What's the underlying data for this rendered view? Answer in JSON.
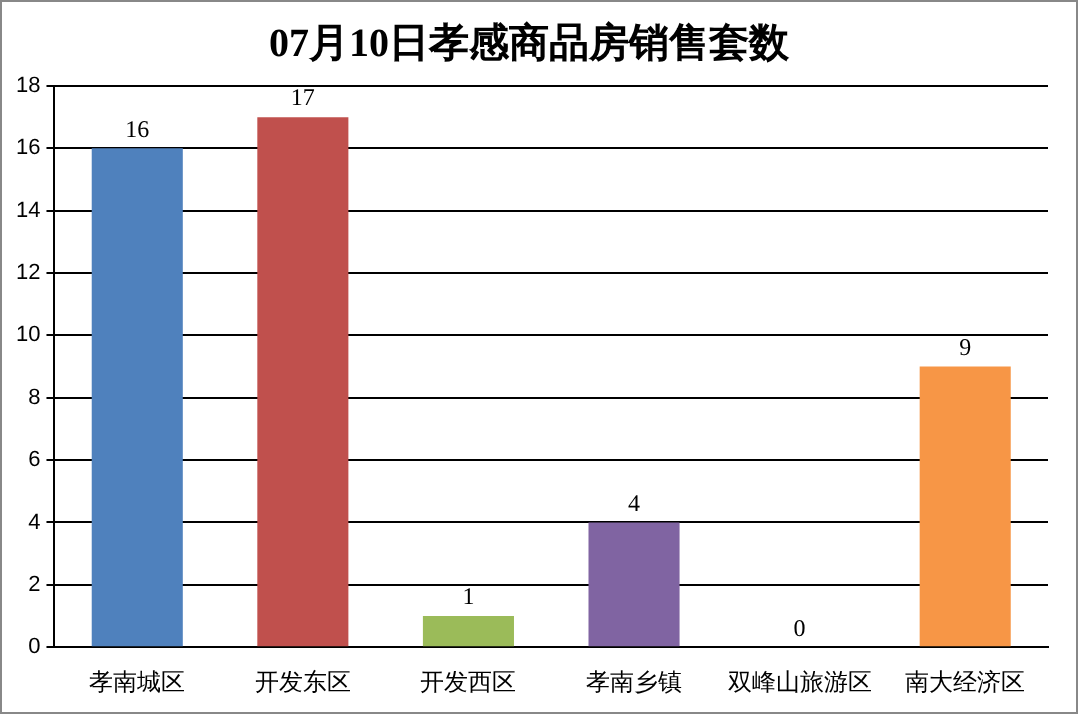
{
  "chart_data": {
    "type": "bar",
    "title": "07月10日孝感商品房销售套数",
    "categories": [
      "孝南城区",
      "开发东区",
      "开发西区",
      "孝南乡镇",
      "双峰山旅游区",
      "南大经济区"
    ],
    "values": [
      16,
      17,
      1,
      4,
      0,
      9
    ],
    "colors": [
      "#4f81bd",
      "#c0504d",
      "#9bbb59",
      "#8064a2",
      "#4bacc6",
      "#f79646"
    ],
    "ylim": [
      0,
      18
    ],
    "yticks": [
      0,
      2,
      4,
      6,
      8,
      10,
      12,
      14,
      16,
      18
    ],
    "grid": "y",
    "data_labels": true
  }
}
